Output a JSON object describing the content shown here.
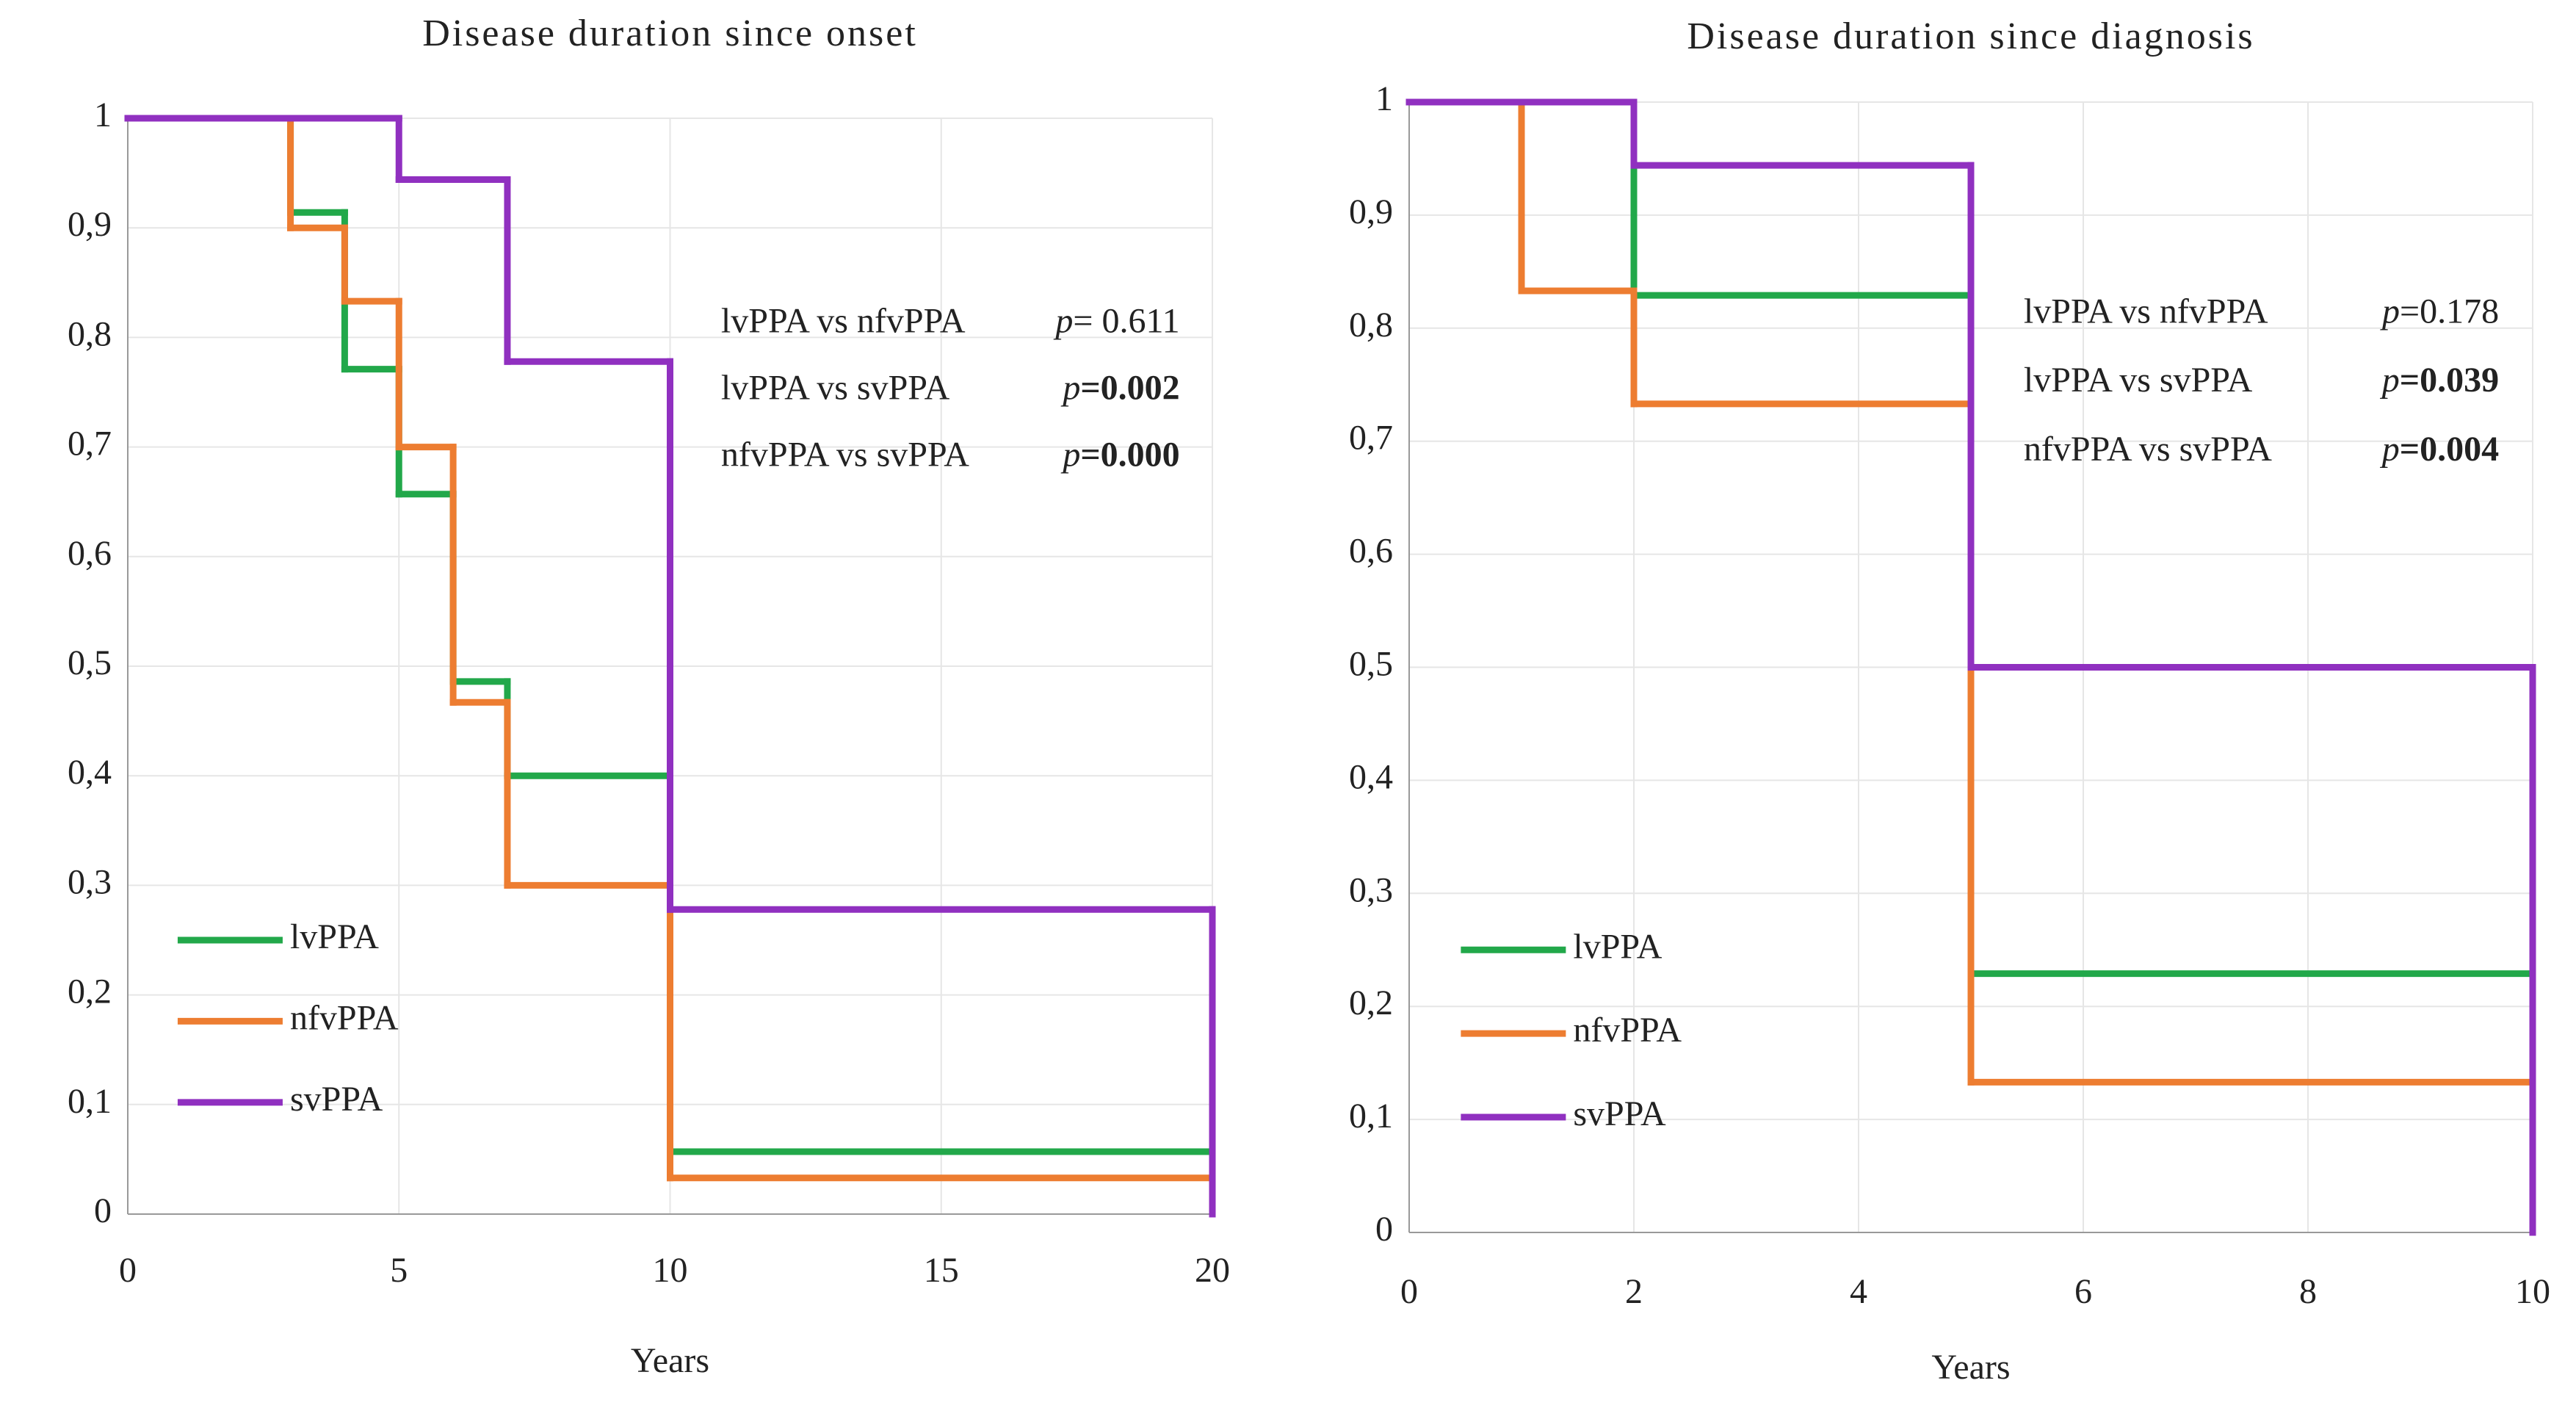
{
  "chart_data": [
    {
      "type": "step",
      "title": "Disease duration since onset",
      "x_label": "Years",
      "xlim": [
        0,
        20
      ],
      "xticks": [
        0,
        5,
        10,
        15,
        20
      ],
      "ylim": [
        0,
        1
      ],
      "yticks": [
        0,
        {
          "value": 0.1,
          "label": "0,1"
        },
        {
          "value": 0.2,
          "label": "0,2"
        },
        {
          "value": 0.3,
          "label": "0,3"
        },
        {
          "value": 0.4,
          "label": "0,4"
        },
        {
          "value": 0.5,
          "label": "0,5"
        },
        {
          "value": 0.6,
          "label": "0,6"
        },
        {
          "value": 0.7,
          "label": "0,7"
        },
        {
          "value": 0.8,
          "label": "0,8"
        },
        {
          "value": 0.9,
          "label": "0,9"
        },
        1
      ],
      "grid": true,
      "legend": "lower left",
      "series": [
        {
          "name": "lvPPA",
          "color": "#22a84a",
          "x": [
            0,
            3,
            4,
            5,
            6,
            7,
            10,
            20
          ],
          "values": [
            1,
            0.914,
            0.771,
            0.657,
            0.486,
            0.4,
            0.057,
            0
          ]
        },
        {
          "name": "nfvPPA",
          "color": "#ed7d31",
          "x": [
            0,
            3,
            4,
            5,
            6,
            7,
            10,
            20
          ],
          "values": [
            1,
            0.9,
            0.833,
            0.7,
            0.467,
            0.3,
            0.033,
            0
          ]
        },
        {
          "name": "svPPA",
          "color": "#9030c0",
          "x": [
            0,
            5,
            7,
            10,
            20
          ],
          "values": [
            1,
            0.944,
            0.778,
            0.278,
            0
          ]
        }
      ],
      "comparisons": [
        {
          "pair": "lvPPA vs nfvPPA",
          "p_symbol": "p",
          "p_value": "= 0.611",
          "bold": false
        },
        {
          "pair": "lvPPA vs svPPA",
          "p_symbol": "p",
          "p_value": "=0.002",
          "bold": true
        },
        {
          "pair": "nfvPPA vs svPPA",
          "p_symbol": "p",
          "p_value": "=0.000",
          "bold": true
        }
      ]
    },
    {
      "type": "step",
      "title": "Disease duration since diagnosis",
      "x_label": "Years",
      "xlim": [
        0,
        10
      ],
      "xticks": [
        0,
        2,
        4,
        6,
        8,
        10
      ],
      "ylim": [
        0,
        1
      ],
      "yticks": [
        0,
        {
          "value": 0.1,
          "label": "0,1"
        },
        {
          "value": 0.2,
          "label": "0,2"
        },
        {
          "value": 0.3,
          "label": "0,3"
        },
        {
          "value": 0.4,
          "label": "0,4"
        },
        {
          "value": 0.5,
          "label": "0,5"
        },
        {
          "value": 0.6,
          "label": "0,6"
        },
        {
          "value": 0.7,
          "label": "0,7"
        },
        {
          "value": 0.8,
          "label": "0,8"
        },
        {
          "value": 0.9,
          "label": "0,9"
        },
        1
      ],
      "grid": true,
      "legend": "lower left",
      "series": [
        {
          "name": "lvPPA",
          "color": "#22a84a",
          "x": [
            0,
            2,
            5,
            10
          ],
          "values": [
            1,
            0.829,
            0.229,
            0
          ]
        },
        {
          "name": "nfvPPA",
          "color": "#ed7d31",
          "x": [
            0,
            1,
            2,
            5,
            10
          ],
          "values": [
            1,
            0.833,
            0.733,
            0.133,
            0
          ]
        },
        {
          "name": "svPPA",
          "color": "#9030c0",
          "x": [
            0,
            2,
            5,
            10
          ],
          "values": [
            1,
            0.944,
            0.5,
            0
          ]
        }
      ],
      "comparisons": [
        {
          "pair": "lvPPA vs nfvPPA",
          "p_symbol": "p",
          "p_value": "=0.178",
          "bold": false
        },
        {
          "pair": "lvPPA vs svPPA",
          "p_symbol": "p",
          "p_value": "=0.039",
          "bold": true
        },
        {
          "pair": "nfvPPA vs svPPA",
          "p_symbol": "p",
          "p_value": "=0.004",
          "bold": true
        }
      ]
    }
  ]
}
